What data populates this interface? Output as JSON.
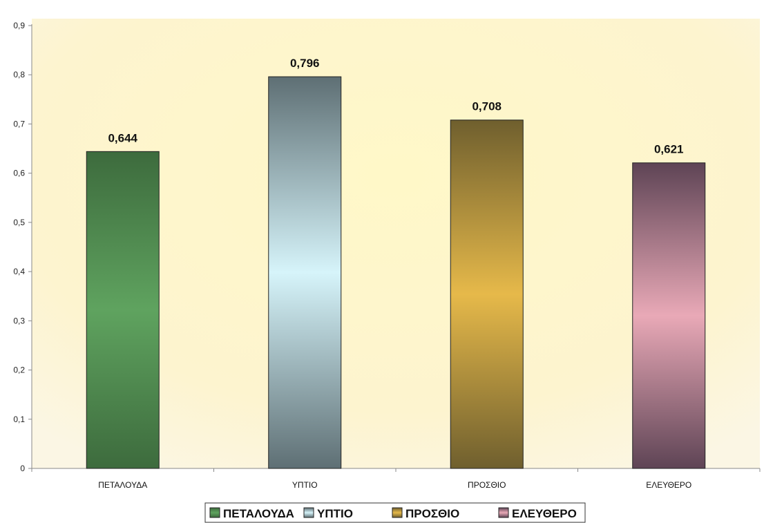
{
  "chart_data": {
    "type": "bar",
    "categories": [
      "ΠΕΤΑΛΟΥΔΑ",
      "ΥΠΤΙΟ",
      "ΠΡΟΣΘΙΟ",
      "ΕΛΕΥΘΕΡΟ"
    ],
    "values": [
      0.644,
      0.796,
      0.708,
      0.621
    ],
    "value_labels": [
      "0,644",
      "0,796",
      "0,708",
      "0,621"
    ],
    "ylim": [
      0,
      0.9
    ],
    "yticks": [
      "0",
      "0,1",
      "0,2",
      "0,3",
      "0,4",
      "0,5",
      "0,6",
      "0,7",
      "0,8",
      "0,9"
    ],
    "grid": false,
    "legend_position": "bottom",
    "legend": [
      "ΠΕΤΑΛΟΥΔΑ",
      "ΥΠΤΙΟ",
      "ΠΡΟΣΘΙΟ",
      "ΕΛΕΥΘΕΡΟ"
    ],
    "colors": {
      "ΠΕΤΑΛΟΥΔΑ": [
        "#3d6b3d",
        "#5fa35f"
      ],
      "ΥΠΤΙΟ": [
        "#5e6f74",
        "#d6f4fa"
      ],
      "ΠΡΟΣΘΙΟ": [
        "#6f5f2e",
        "#e6b94a"
      ],
      "ΕΛΕΥΘΕΡΟ": [
        "#5e4455",
        "#e9a9b7"
      ]
    },
    "background_color": "#fdf6c8"
  }
}
